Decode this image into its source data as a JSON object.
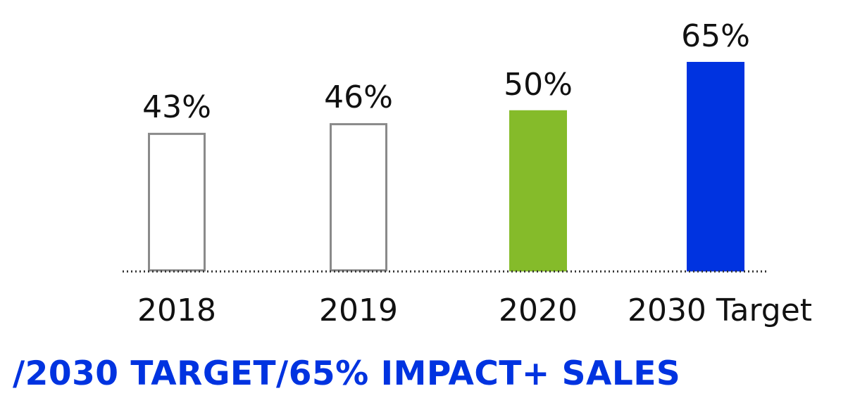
{
  "chart_data": {
    "type": "bar",
    "categories": [
      "2018",
      "2019",
      "2020",
      "2030 Target"
    ],
    "values": [
      43,
      46,
      50,
      65
    ],
    "value_labels": [
      "43%",
      "46%",
      "50%",
      "65%"
    ],
    "unit": "%",
    "title": "",
    "xlabel": "",
    "ylabel": "",
    "ylim": [
      0,
      65
    ],
    "bar_styles": [
      {
        "fill": "#ffffff",
        "stroke": "#8a8a8a"
      },
      {
        "fill": "#ffffff",
        "stroke": "#8a8a8a"
      },
      {
        "fill": "#85bb2a",
        "stroke": "none"
      },
      {
        "fill": "#0033e0",
        "stroke": "none"
      }
    ],
    "baseline_style": "dotted",
    "grid": false,
    "legend": "none"
  },
  "headline": {
    "text": "/2030 TARGET/65% IMPACT+ SALES",
    "color": "#0033e0"
  }
}
